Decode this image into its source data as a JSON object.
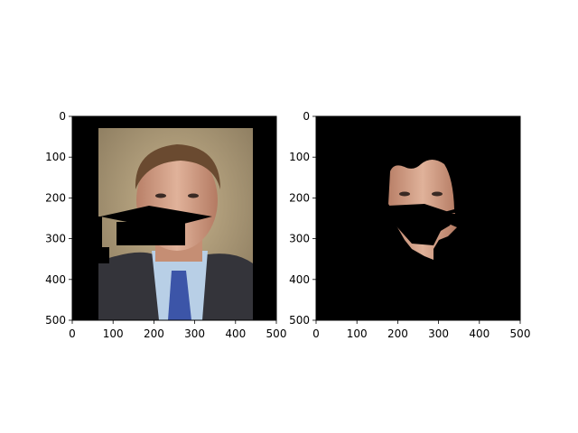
{
  "chart_data": [
    {
      "type": "image",
      "content": "photo of a man in suit and blue tie with a black graduation-cap shape overlaid across the lower face",
      "xlim": [
        0,
        500
      ],
      "ylim": [
        500,
        0
      ],
      "xticks": [
        0,
        100,
        200,
        300,
        400,
        500
      ],
      "yticks": [
        0,
        100,
        200,
        300,
        400,
        500
      ],
      "xtick_labels": [
        "0",
        "100",
        "200",
        "300",
        "400",
        "500"
      ],
      "ytick_labels": [
        "0",
        "100",
        "200",
        "300",
        "400",
        "500"
      ],
      "grid": false
    },
    {
      "type": "image",
      "content": "segmented face-skin region on black background",
      "xlim": [
        0,
        500
      ],
      "ylim": [
        500,
        0
      ],
      "xticks": [
        0,
        100,
        200,
        300,
        400,
        500
      ],
      "yticks": [
        0,
        100,
        200,
        300,
        400,
        500
      ],
      "xtick_labels": [
        "0",
        "100",
        "200",
        "300",
        "400",
        "500"
      ],
      "ytick_labels": [
        "0",
        "100",
        "200",
        "300",
        "400",
        "500"
      ],
      "grid": false
    }
  ],
  "colors": {
    "background": "#000000",
    "photo_backdrop": "#b9a47e",
    "skin": "#d7a48a",
    "hair": "#6a4a30",
    "suit": "#3a3a40",
    "shirt": "#b8cfe6",
    "tie": "#3c55a8"
  }
}
